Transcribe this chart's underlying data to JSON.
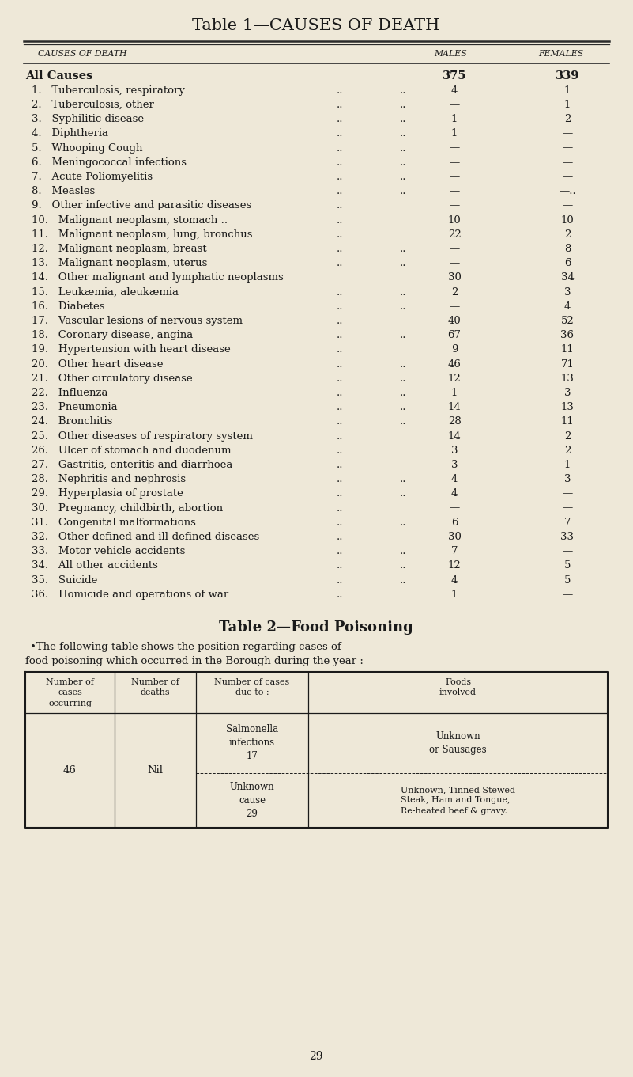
{
  "bg_color": "#eee8d8",
  "title1": "Table 1—CAUSES OF DEATH",
  "title2": "Table 2—Food Poisoning",
  "col_header_cause": "CAUSES OF DEATH",
  "col_header_males": "MALES",
  "col_header_females": "FEMALES",
  "rows": [
    [
      "All Causes",
      "",
      "",
      "375",
      "339",
      true
    ],
    [
      "1.   Tuberculosis, respiratory",
      "..",
      "..",
      "4",
      "1",
      false
    ],
    [
      "2.   Tuberculosis, other",
      "..",
      "..",
      "—",
      "1",
      false
    ],
    [
      "3.   Syphilitic disease",
      "..",
      "..",
      "1",
      "2",
      false
    ],
    [
      "4.   Diphtheria",
      "..",
      "..",
      "1",
      "—",
      false
    ],
    [
      "5.   Whooping Cough",
      "..",
      "..",
      "—",
      "—",
      false
    ],
    [
      "6.   Meningococcal infections",
      "..",
      "..",
      "—",
      "—",
      false
    ],
    [
      "7.   Acute Poliomyelitis",
      "..",
      "..",
      "—",
      "—",
      false
    ],
    [
      "8.   Measles",
      "..",
      "..",
      "—",
      "—..",
      false
    ],
    [
      "9.   Other infective and parasitic diseases",
      "..",
      "",
      "—",
      "—",
      false
    ],
    [
      "10.   Malignant neoplasm, stomach ..",
      "..",
      "",
      "10",
      "10",
      false
    ],
    [
      "11.   Malignant neoplasm, lung, bronchus",
      "..",
      "",
      "22",
      "2",
      false
    ],
    [
      "12.   Malignant neoplasm, breast",
      "..",
      "..",
      "—",
      "8",
      false
    ],
    [
      "13.   Malignant neoplasm, uterus",
      "..",
      "..",
      "—",
      "6",
      false
    ],
    [
      "14.   Other malignant and lymphatic neoplasms",
      "",
      "",
      "30",
      "34",
      false
    ],
    [
      "15.   Leukæmia, aleukæmia",
      "..",
      "..",
      "2",
      "3",
      false
    ],
    [
      "16.   Diabetes",
      "..",
      "..",
      "—",
      "4",
      false
    ],
    [
      "17.   Vascular lesions of nervous system",
      "..",
      "",
      "40",
      "52",
      false
    ],
    [
      "18.   Coronary disease, angina",
      "..",
      "..",
      "67",
      "36",
      false
    ],
    [
      "19.   Hypertension with heart disease",
      "..",
      "",
      "9",
      "11",
      false
    ],
    [
      "20.   Other heart disease",
      "..",
      "..",
      "46",
      "71",
      false
    ],
    [
      "21.   Other circulatory disease",
      "..",
      "..",
      "12",
      "13",
      false
    ],
    [
      "22.   Influenza",
      "..",
      "..",
      "1",
      "3",
      false
    ],
    [
      "23.   Pneumonia",
      "..",
      "..",
      "14",
      "13",
      false
    ],
    [
      "24.   Bronchitis",
      "..",
      "..",
      "28",
      "11",
      false
    ],
    [
      "25.   Other diseases of respiratory system",
      "..",
      "",
      "14",
      "2",
      false
    ],
    [
      "26.   Ulcer of stomach and duodenum",
      "..",
      "",
      "3",
      "2",
      false
    ],
    [
      "27.   Gastritis, enteritis and diarrhoea",
      "..",
      "",
      "3",
      "1",
      false
    ],
    [
      "28.   Nephritis and nephrosis",
      "..",
      "..",
      "4",
      "3",
      false
    ],
    [
      "29.   Hyperplasia of prostate",
      "..",
      "..",
      "4",
      "—",
      false
    ],
    [
      "30.   Pregnancy, childbirth, abortion",
      "..",
      "",
      "—",
      "—",
      false
    ],
    [
      "31.   Congenital malformations",
      "..",
      "..",
      "6",
      "7",
      false
    ],
    [
      "32.   Other defined and ill-defined diseases",
      "..",
      "",
      "30",
      "33",
      false
    ],
    [
      "33.   Motor vehicle accidents",
      "..",
      "..",
      "7",
      "—",
      false
    ],
    [
      "34.   All other accidents",
      "..",
      "..",
      "12",
      "5",
      false
    ],
    [
      "35.   Suicide",
      "..",
      "..",
      "4",
      "5",
      false
    ],
    [
      "36.   Homicide and operations of war",
      "..",
      "",
      "1",
      "—",
      false
    ]
  ],
  "table2_intro_line1": "•The following table shows the position regarding cases of",
  "table2_intro_line2": "food poisoning which occurred in the Borough during the year :",
  "table2_headers": [
    "Number of\ncases\noccurring",
    "Number of\ndeaths",
    "Number of cases\ndue to :",
    "Foods\ninvolved"
  ],
  "table2_col1": "46",
  "table2_col2": "Nil",
  "table2_row1_c3": "Salmonella\ninfections\n17",
  "table2_row1_c4": "Unknown\nor Sausages",
  "table2_row2_c3": "Unknown\ncause\n29",
  "table2_row2_c4": "Unknown, Tinned Stewed\nSteak, Ham and Tongue,\nRe-heated beef & gravy.",
  "page_num": "29"
}
